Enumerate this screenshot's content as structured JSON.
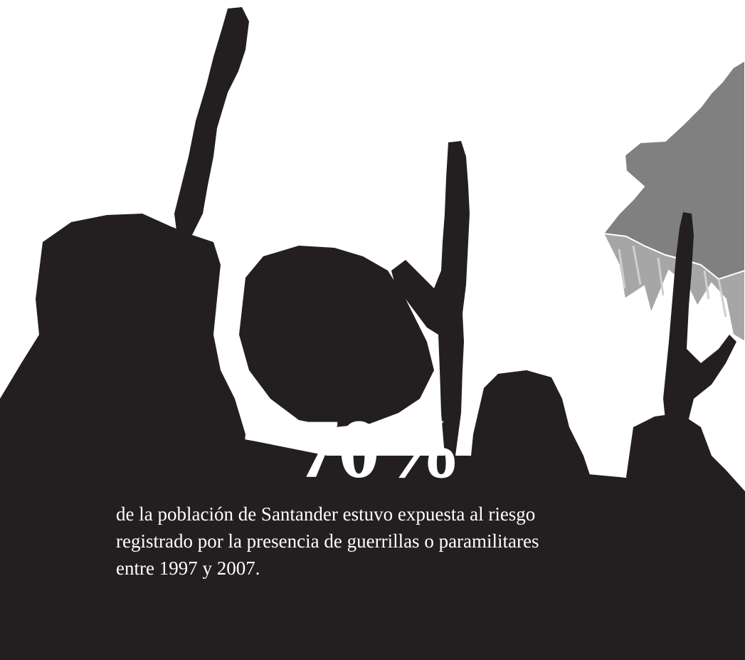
{
  "stat": {
    "value": "70%",
    "lines": [
      "de la población de Santander estuvo expuesta al riesgo",
      "registrado por la presencia de guerrillas o paramilitares",
      "entre 1997 y 2007."
    ]
  },
  "colors": {
    "background": "#ffffff",
    "silhouette": "#231f20",
    "map_top": "#808080",
    "map_side": "#a6a6a6",
    "text": "#ffffff"
  }
}
